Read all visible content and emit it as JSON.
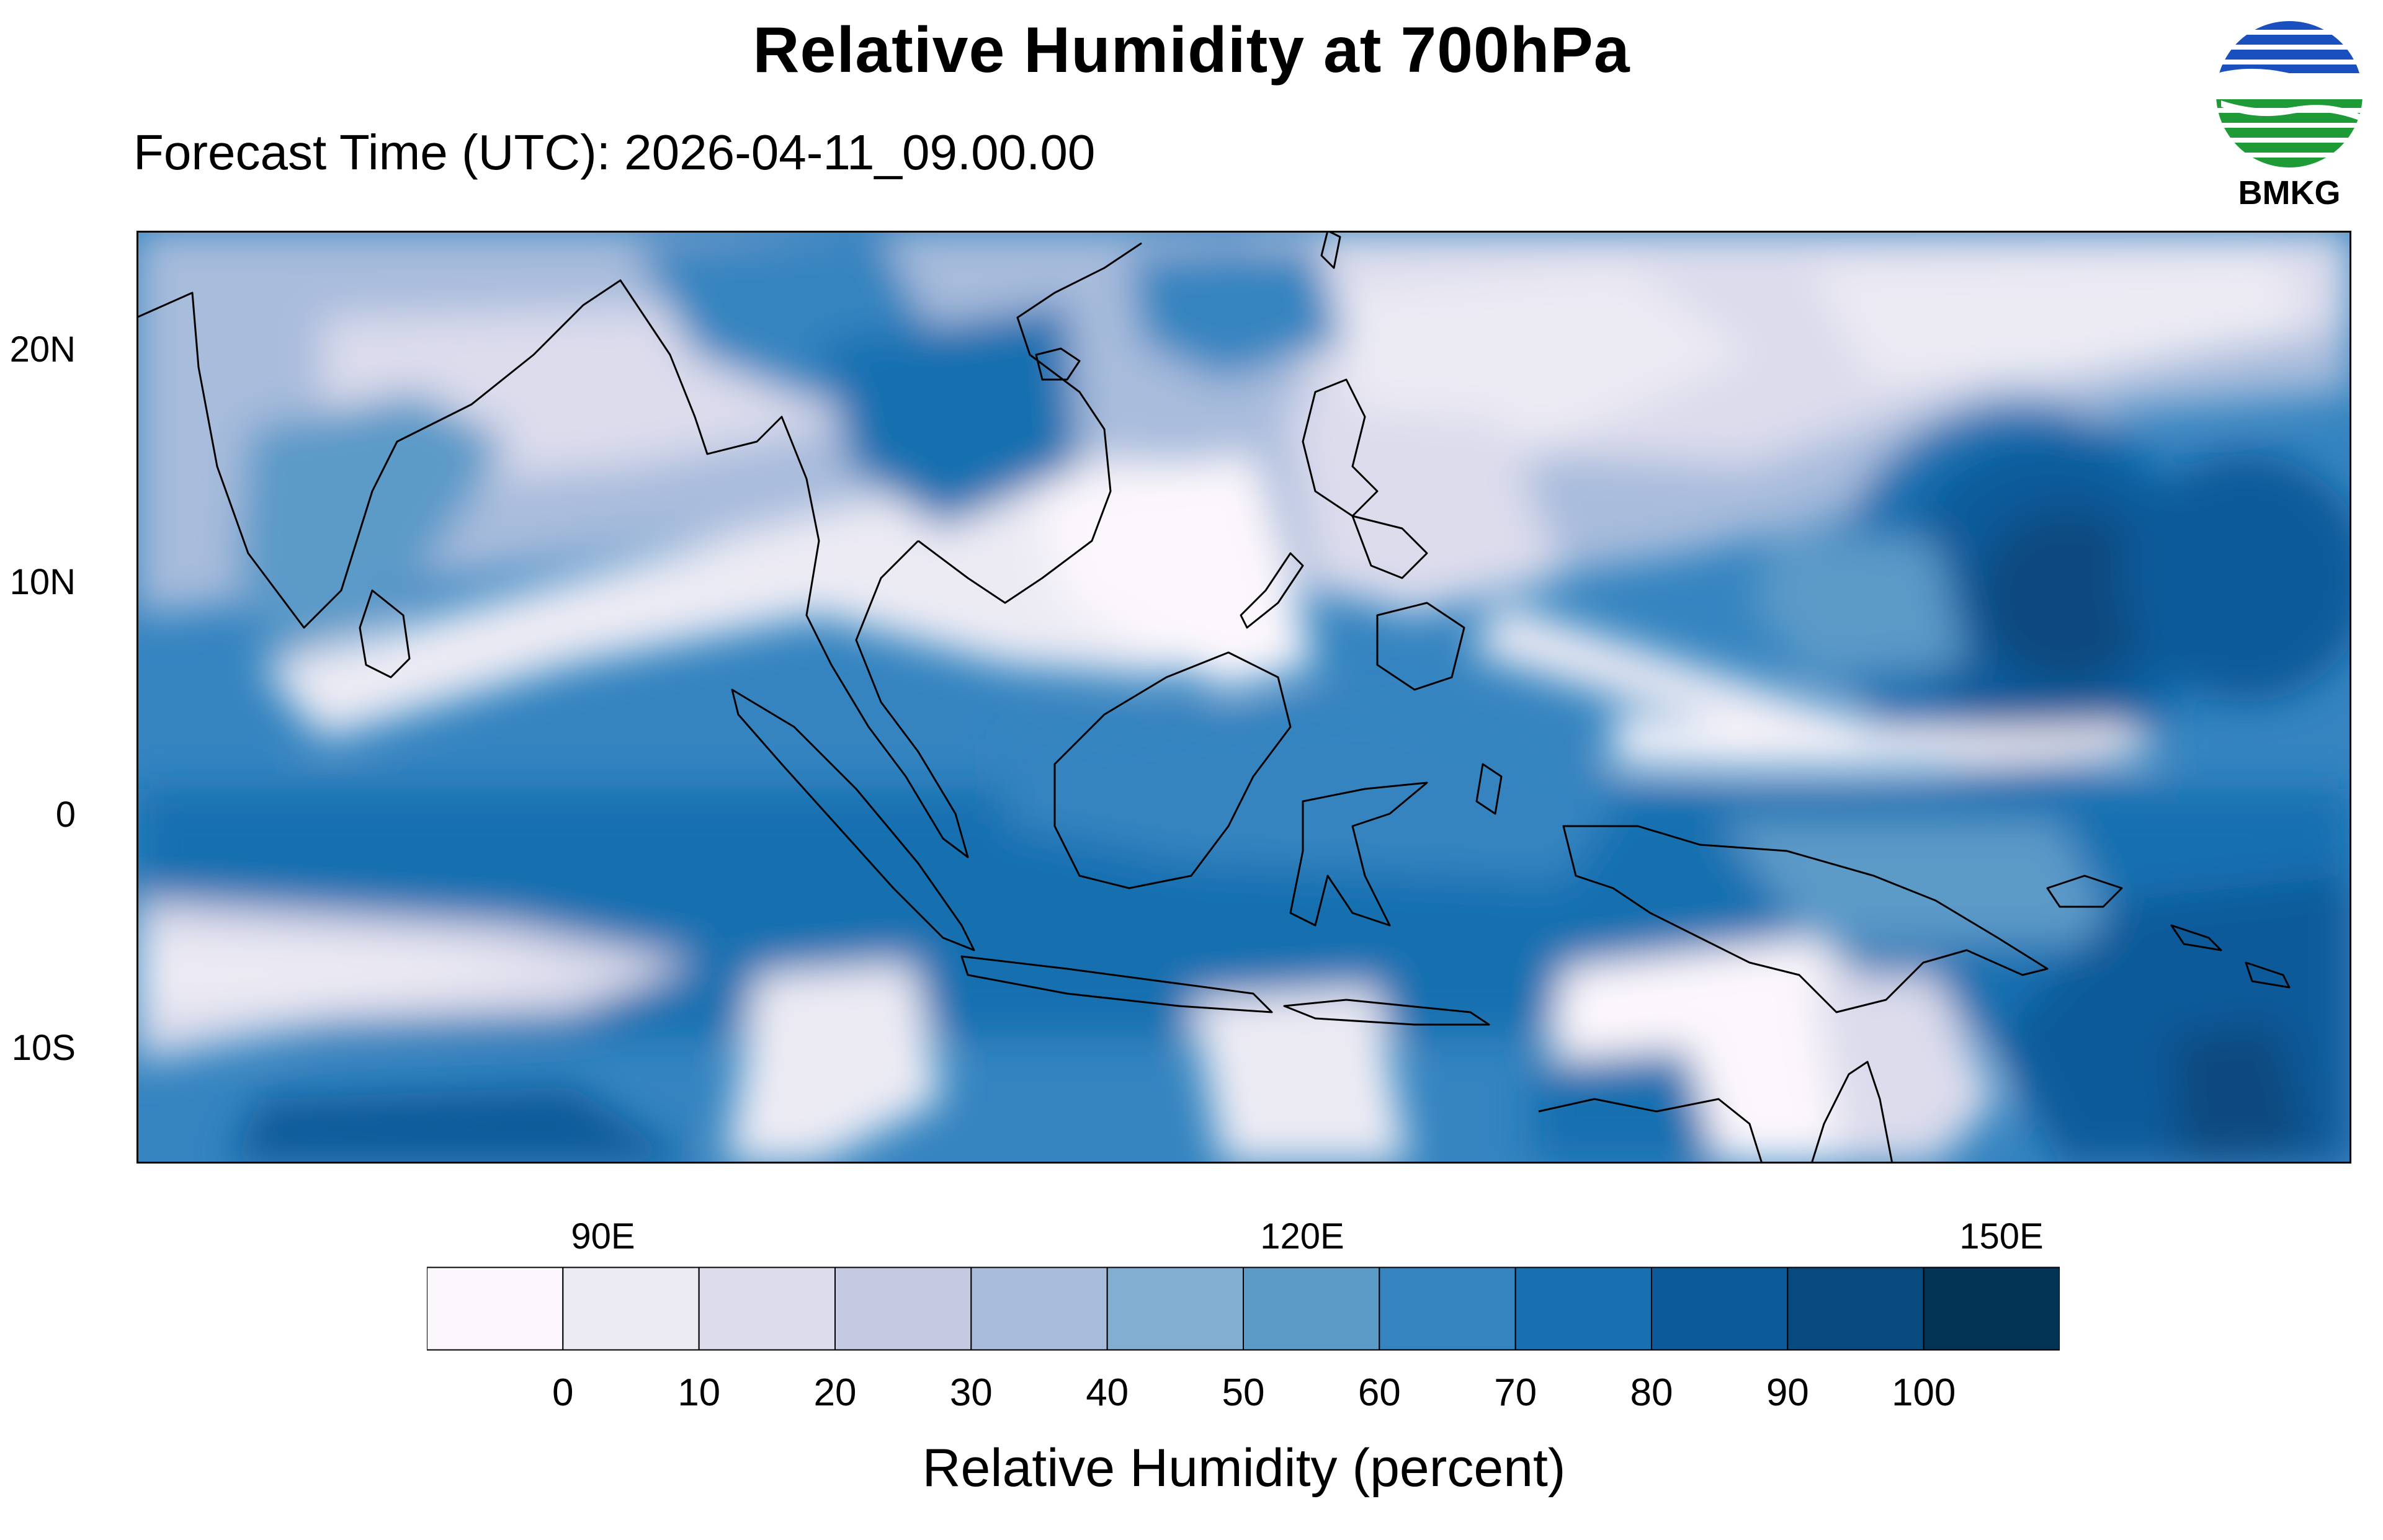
{
  "title": "Relative Humidity at 700hPa",
  "subtitle": "Forecast Time (UTC): 2026-04-11_09.00.00",
  "logo": {
    "text": "BMKG",
    "icon": "bmkg-logo-icon",
    "colors": {
      "blue": "#1a4fc0",
      "green": "#1e9a36"
    }
  },
  "map": {
    "lat_labels": [
      "20N",
      "10N",
      "0",
      "10S"
    ],
    "lon_labels": [
      "90E",
      "120E",
      "150E"
    ],
    "lat_range": [
      -15,
      25
    ],
    "lon_range": [
      70,
      165
    ]
  },
  "colorbar": {
    "colors": [
      "#fcf7fc",
      "#ecebf4",
      "#dcdcec",
      "#c6c9e2",
      "#a8bcdc",
      "#82aed2",
      "#5c9ac8",
      "#3584c0",
      "#1870b0",
      "#0c5a9a",
      "#074a7e",
      "#033456"
    ],
    "labels": [
      "0",
      "10",
      "20",
      "30",
      "40",
      "50",
      "60",
      "70",
      "80",
      "90",
      "100"
    ],
    "title": "Relative Humidity (percent)"
  }
}
